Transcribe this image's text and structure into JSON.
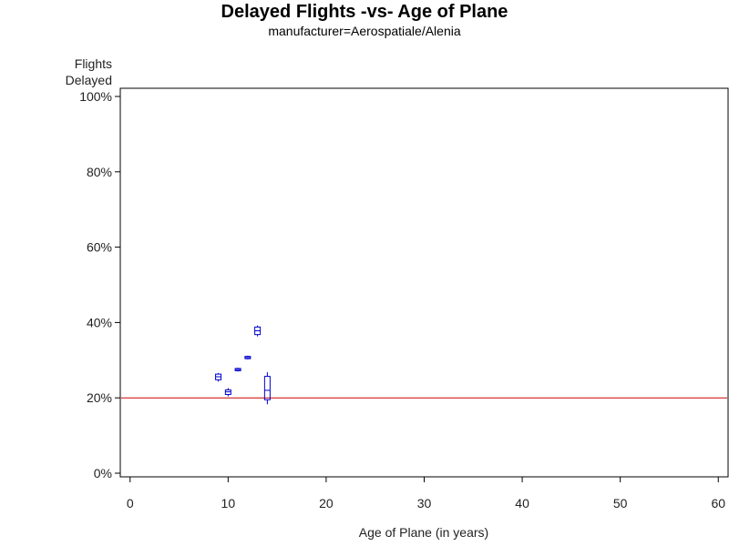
{
  "chart_data": {
    "type": "box",
    "title": "Delayed Flights -vs- Age of Plane",
    "subtitle": "manufacturer=Aerospatiale/Alenia",
    "ylabel_lines": [
      "Flights",
      "Delayed"
    ],
    "xlabel": "Age of Plane (in years)",
    "xlim": [
      -1,
      61
    ],
    "ylim": [
      0,
      100
    ],
    "x_ticks": [
      0,
      10,
      20,
      30,
      40,
      50,
      60
    ],
    "y_ticks": [
      0,
      20,
      40,
      60,
      80,
      100
    ],
    "y_tick_labels": [
      "0%",
      "20%",
      "40%",
      "60%",
      "80%",
      "100%"
    ],
    "reference_line": {
      "y": 20,
      "color": "#cc0000"
    },
    "box_color": "#0000cc",
    "boxes": [
      {
        "x": 9,
        "whisker_low": 24.3,
        "q1": 24.8,
        "median": 25.6,
        "q3": 26.3,
        "whisker_high": 26.6
      },
      {
        "x": 10,
        "whisker_low": 20.4,
        "q1": 20.9,
        "median": 21.6,
        "q3": 22.1,
        "whisker_high": 22.6
      },
      {
        "x": 11,
        "whisker_low": 27.0,
        "q1": 27.2,
        "median": 27.5,
        "q3": 27.8,
        "whisker_high": 28.0
      },
      {
        "x": 12,
        "whisker_low": 30.2,
        "q1": 30.4,
        "median": 30.7,
        "q3": 31.0,
        "whisker_high": 31.2
      },
      {
        "x": 13,
        "whisker_low": 36.3,
        "q1": 36.8,
        "median": 37.8,
        "q3": 38.8,
        "whisker_high": 39.2
      },
      {
        "x": 14,
        "whisker_low": 18.3,
        "q1": 19.5,
        "median": 22.0,
        "q3": 25.7,
        "whisker_high": 26.8
      }
    ]
  }
}
